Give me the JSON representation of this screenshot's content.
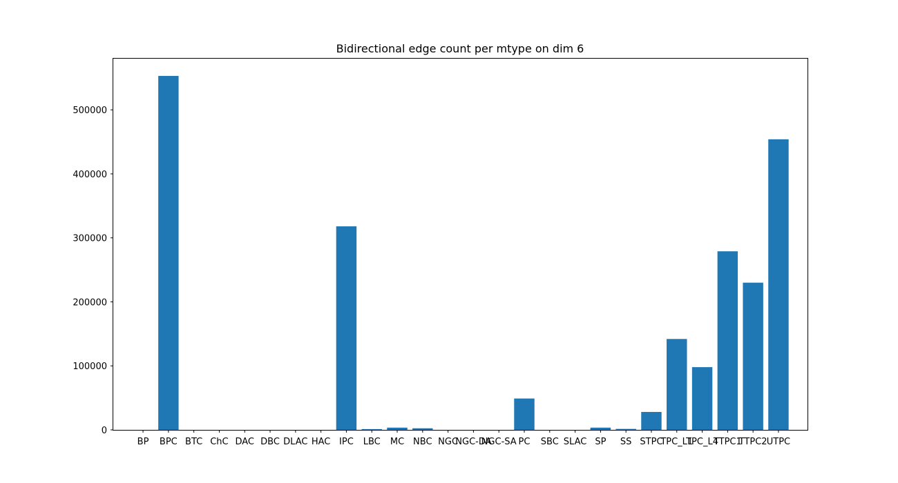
{
  "chart_data": {
    "type": "bar",
    "title": "Bidirectional edge count per mtype on dim 6",
    "xlabel": "",
    "ylabel": "",
    "categories": [
      "BP",
      "BPC",
      "BTC",
      "ChC",
      "DAC",
      "DBC",
      "DLAC",
      "HAC",
      "IPC",
      "LBC",
      "MC",
      "NBC",
      "NGC",
      "NGC-DA",
      "NGC-SA",
      "PC",
      "SBC",
      "SLAC",
      "SP",
      "SS",
      "STPC",
      "TPC_L1",
      "TPC_L4",
      "TTPC1",
      "TTPC2",
      "UTPC"
    ],
    "values": [
      0,
      553000,
      0,
      0,
      0,
      0,
      0,
      0,
      318000,
      1200,
      3500,
      2500,
      0,
      0,
      0,
      49000,
      0,
      0,
      3500,
      1500,
      28000,
      142000,
      98000,
      279000,
      230000,
      454000
    ],
    "ylim": [
      0,
      580000
    ],
    "yticks": [
      0,
      100000,
      200000,
      300000,
      400000,
      500000
    ],
    "ytick_labels": [
      "0",
      "100000",
      "200000",
      "300000",
      "400000",
      "500000"
    ],
    "grid": false,
    "bar_color": "#1f77b4"
  }
}
